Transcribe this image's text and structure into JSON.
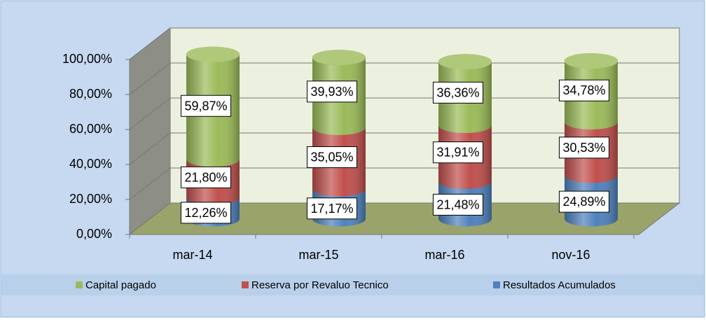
{
  "chart_data": {
    "type": "bar",
    "categories": [
      "mar-14",
      "mar-15",
      "mar-16",
      "nov-16"
    ],
    "series": [
      {
        "name": "Capital pagado",
        "color": "#9bbb59",
        "values": [
          59.87,
          39.93,
          36.36,
          34.78
        ],
        "value_labels": [
          "59,87%",
          "39,93%",
          "36,36%",
          "34,78%"
        ]
      },
      {
        "name": "Reserva por Revaluo Tecnico",
        "color": "#c0504d",
        "values": [
          21.8,
          35.05,
          31.91,
          30.53
        ],
        "value_labels": [
          "21,80%",
          "35,05%",
          "31,91%",
          "30,53%"
        ]
      },
      {
        "name": "Resultados Acumulados",
        "color": "#4f81bd",
        "values": [
          12.26,
          17.17,
          21.48,
          24.89
        ],
        "value_labels": [
          "12,26%",
          "17,17%",
          "21,48%",
          "24,89%"
        ]
      }
    ],
    "stacked": true,
    "ylim": [
      0,
      100
    ],
    "yticks": [
      {
        "value": 0,
        "label": "0,00%"
      },
      {
        "value": 20,
        "label": "20,00%"
      },
      {
        "value": 40,
        "label": "40,00%"
      },
      {
        "value": 60,
        "label": "60,00%"
      },
      {
        "value": 80,
        "label": "80,00%"
      },
      {
        "value": 100,
        "label": "100,00%"
      }
    ],
    "grid": true,
    "legend": "bottom"
  }
}
